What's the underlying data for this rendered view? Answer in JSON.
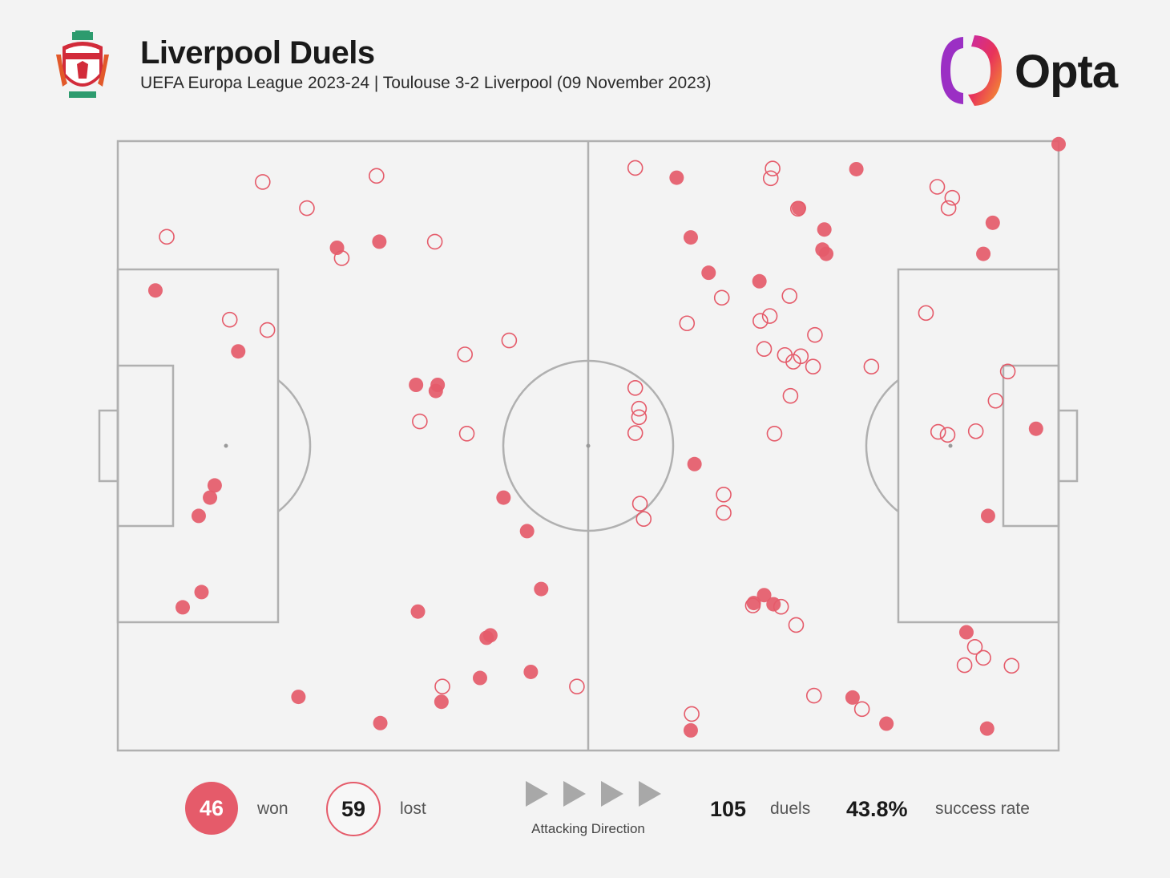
{
  "header": {
    "title": "Liverpool Duels",
    "subtitle": "UEFA Europa League 2023-24 | Toulouse 3-2 Liverpool (09 November 2023)",
    "brand": "Opta",
    "crest_icon": "liverpool-crest-icon",
    "brand_icon": "opta-logo-icon"
  },
  "legend": {
    "won_count": "46",
    "won_label": "won",
    "lost_count": "59",
    "lost_label": "lost",
    "direction_label": "Attacking Direction",
    "total_duels": "105",
    "duels_label": "duels",
    "success_rate": "43.8%",
    "success_rate_label": "success rate"
  },
  "colors": {
    "won": "#e55b6a",
    "lost": "#e55b6a",
    "pitch_lines": "#b0b0b0",
    "background": "#f3f3f3"
  },
  "chart_data": {
    "type": "scatter",
    "x_range": [
      0,
      100
    ],
    "y_range": [
      0,
      100
    ],
    "won": [
      [
        4.0,
        75.5
      ],
      [
        12.8,
        65.5
      ],
      [
        8.6,
        38.5
      ],
      [
        8.9,
        26.0
      ],
      [
        9.8,
        41.5
      ],
      [
        10.3,
        43.5
      ],
      [
        6.9,
        23.5
      ],
      [
        23.3,
        82.5
      ],
      [
        27.8,
        83.5
      ],
      [
        31.7,
        60.0
      ],
      [
        33.8,
        59.0
      ],
      [
        34.0,
        60.0
      ],
      [
        41.0,
        41.5
      ],
      [
        43.5,
        36.0
      ],
      [
        19.2,
        8.8
      ],
      [
        31.9,
        22.8
      ],
      [
        27.9,
        4.5
      ],
      [
        34.4,
        8.0
      ],
      [
        38.5,
        11.9
      ],
      [
        39.2,
        18.5
      ],
      [
        39.6,
        18.9
      ],
      [
        43.9,
        12.9
      ],
      [
        45.0,
        26.5
      ],
      [
        61.3,
        47.0
      ],
      [
        59.4,
        94.0
      ],
      [
        60.9,
        84.2
      ],
      [
        62.8,
        78.4
      ],
      [
        68.2,
        77.0
      ],
      [
        72.4,
        89.0
      ],
      [
        75.1,
        85.5
      ],
      [
        74.9,
        82.2
      ],
      [
        75.3,
        81.5
      ],
      [
        78.5,
        95.4
      ],
      [
        93.0,
        86.6
      ],
      [
        68.7,
        25.5
      ],
      [
        67.6,
        24.2
      ],
      [
        69.7,
        24.0
      ],
      [
        92.0,
        81.5
      ],
      [
        100.0,
        99.5
      ],
      [
        97.6,
        52.8
      ],
      [
        92.5,
        38.5
      ],
      [
        90.2,
        19.4
      ],
      [
        78.1,
        8.7
      ],
      [
        81.7,
        4.4
      ],
      [
        92.4,
        3.6
      ],
      [
        60.9,
        3.3
      ]
    ],
    "lost": [
      [
        15.4,
        93.3
      ],
      [
        27.5,
        94.3
      ],
      [
        20.1,
        89.0
      ],
      [
        5.2,
        84.3
      ],
      [
        23.8,
        80.8
      ],
      [
        33.7,
        83.5
      ],
      [
        15.9,
        69.0
      ],
      [
        11.9,
        70.7
      ],
      [
        36.9,
        65.0
      ],
      [
        41.6,
        67.3
      ],
      [
        32.1,
        54.0
      ],
      [
        37.1,
        52.0
      ],
      [
        55.0,
        95.6
      ],
      [
        69.6,
        95.5
      ],
      [
        69.4,
        93.9
      ],
      [
        72.3,
        88.9
      ],
      [
        64.2,
        74.3
      ],
      [
        69.3,
        71.3
      ],
      [
        68.3,
        70.5
      ],
      [
        71.4,
        74.6
      ],
      [
        60.5,
        70.1
      ],
      [
        68.7,
        65.9
      ],
      [
        70.9,
        64.9
      ],
      [
        71.8,
        63.8
      ],
      [
        74.1,
        68.2
      ],
      [
        72.6,
        64.7
      ],
      [
        73.9,
        63.0
      ],
      [
        71.5,
        58.2
      ],
      [
        55.0,
        59.5
      ],
      [
        55.4,
        56.1
      ],
      [
        55.0,
        52.1
      ],
      [
        55.4,
        54.7
      ],
      [
        87.1,
        92.5
      ],
      [
        88.7,
        90.7
      ],
      [
        88.3,
        89.0
      ],
      [
        85.9,
        71.8
      ],
      [
        94.6,
        62.2
      ],
      [
        80.1,
        63.0
      ],
      [
        93.3,
        57.4
      ],
      [
        87.2,
        52.3
      ],
      [
        88.2,
        51.8
      ],
      [
        91.2,
        52.4
      ],
      [
        69.8,
        52.0
      ],
      [
        64.4,
        42.0
      ],
      [
        64.4,
        39.0
      ],
      [
        55.5,
        40.5
      ],
      [
        55.9,
        38.0
      ],
      [
        67.5,
        23.8
      ],
      [
        70.5,
        23.6
      ],
      [
        72.1,
        20.6
      ],
      [
        91.1,
        17.0
      ],
      [
        92.0,
        15.2
      ],
      [
        90.0,
        14.0
      ],
      [
        95.0,
        13.9
      ],
      [
        74.0,
        9.0
      ],
      [
        79.1,
        6.8
      ],
      [
        61.0,
        6.0
      ],
      [
        34.5,
        10.5
      ],
      [
        48.8,
        10.5
      ]
    ]
  }
}
